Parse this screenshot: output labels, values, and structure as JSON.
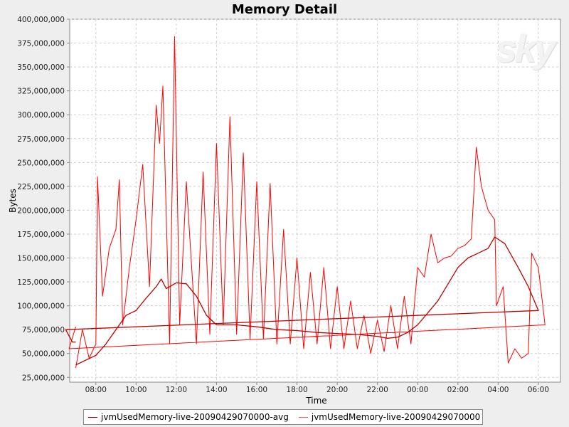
{
  "chart_data": {
    "type": "line",
    "title": "Memory Detail",
    "xlabel": "Time",
    "ylabel": "Bytes",
    "ylim": [
      20000000,
      400000000
    ],
    "xlim_hours": [
      6.7,
      31.1
    ],
    "yticks": [
      "25,000,000",
      "50,000,000",
      "75,000,000",
      "100,000,000",
      "125,000,000",
      "150,000,000",
      "175,000,000",
      "200,000,000",
      "225,000,000",
      "250,000,000",
      "275,000,000",
      "300,000,000",
      "325,000,000",
      "350,000,000",
      "375,000,000",
      "400,000,000"
    ],
    "xticks": [
      "08:00",
      "10:00",
      "12:00",
      "14:00",
      "16:00",
      "18:00",
      "20:00",
      "22:00",
      "00:00",
      "02:00",
      "04:00",
      "06:00"
    ],
    "grid": true,
    "legend_position": "bottom",
    "watermark": "sky",
    "colors": {
      "avg": "#c00000",
      "raw": "#ff0000"
    },
    "series": [
      {
        "name": "jvmUsedMemory-live-20090429070000-avg",
        "x": [
          "07:00",
          "07:30",
          "08:00",
          "08:30",
          "09:00",
          "09:30",
          "10:00",
          "10:30",
          "11:00",
          "11:15",
          "11:30",
          "12:00",
          "12:30",
          "13:00",
          "13:30",
          "14:00",
          "15:00",
          "16:00",
          "17:00",
          "18:00",
          "19:00",
          "20:00",
          "21:00",
          "22:00",
          "22:30",
          "23:00",
          "23:30",
          "00:00",
          "01:00",
          "02:00",
          "02:30",
          "03:00",
          "03:30",
          "03:50",
          "04:20",
          "05:00",
          "05:30",
          "06:00",
          "06:30",
          "06:50",
          "07:00"
        ],
        "values": [
          38000000,
          43000000,
          48000000,
          60000000,
          75000000,
          90000000,
          95000000,
          108000000,
          120000000,
          128000000,
          118000000,
          124000000,
          123000000,
          110000000,
          90000000,
          80000000,
          80000000,
          78000000,
          75000000,
          74000000,
          72000000,
          71000000,
          70000000,
          68000000,
          66000000,
          67000000,
          72000000,
          80000000,
          105000000,
          140000000,
          150000000,
          155000000,
          160000000,
          172000000,
          165000000,
          140000000,
          120000000,
          95000000,
          75000000,
          62000000,
          62000000
        ]
      },
      {
        "name": "jvmUsedMemory-live-20090429070000",
        "x": [
          "07:00",
          "07:20",
          "07:40",
          "08:00",
          "08:05",
          "08:20",
          "08:40",
          "09:00",
          "09:10",
          "09:20",
          "09:40",
          "10:00",
          "10:20",
          "10:40",
          "11:00",
          "11:10",
          "11:20",
          "11:40",
          "11:55",
          "12:10",
          "12:30",
          "13:00",
          "13:20",
          "13:40",
          "14:00",
          "14:20",
          "14:40",
          "15:00",
          "15:20",
          "15:40",
          "16:00",
          "16:20",
          "16:40",
          "17:00",
          "17:20",
          "17:40",
          "18:00",
          "18:20",
          "18:40",
          "19:00",
          "19:20",
          "19:40",
          "20:00",
          "20:20",
          "20:40",
          "21:00",
          "21:20",
          "21:40",
          "22:00",
          "22:20",
          "22:40",
          "23:00",
          "23:20",
          "23:40",
          "00:00",
          "00:20",
          "00:40",
          "01:00",
          "01:20",
          "01:40",
          "02:00",
          "02:20",
          "02:40",
          "02:55",
          "03:10",
          "03:30",
          "03:50",
          "03:55",
          "04:15",
          "04:30",
          "04:50",
          "05:10",
          "05:30",
          "05:40",
          "06:00",
          "06:20",
          "06:40",
          "07:00"
        ],
        "values": [
          35000000,
          75000000,
          45000000,
          60000000,
          235000000,
          110000000,
          160000000,
          180000000,
          232000000,
          80000000,
          140000000,
          190000000,
          248000000,
          120000000,
          310000000,
          270000000,
          330000000,
          60000000,
          382000000,
          80000000,
          230000000,
          60000000,
          240000000,
          70000000,
          270000000,
          80000000,
          298000000,
          70000000,
          260000000,
          65000000,
          230000000,
          65000000,
          228000000,
          60000000,
          180000000,
          60000000,
          150000000,
          55000000,
          135000000,
          60000000,
          140000000,
          55000000,
          120000000,
          55000000,
          105000000,
          55000000,
          90000000,
          50000000,
          85000000,
          52000000,
          100000000,
          55000000,
          110000000,
          60000000,
          140000000,
          130000000,
          175000000,
          145000000,
          150000000,
          152000000,
          160000000,
          163000000,
          170000000,
          266000000,
          225000000,
          200000000,
          190000000,
          100000000,
          120000000,
          40000000,
          55000000,
          45000000,
          50000000,
          155000000,
          140000000,
          80000000,
          55000000,
          78000000
        ]
      }
    ]
  }
}
